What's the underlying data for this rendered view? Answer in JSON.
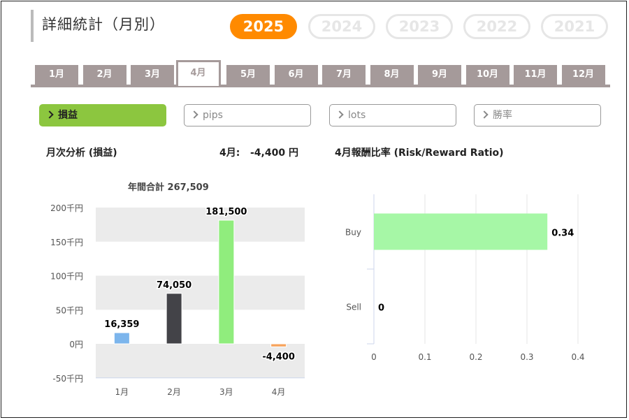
{
  "header": {
    "title": "詳細統計（月別）"
  },
  "years": [
    {
      "label": "2025",
      "active": true
    },
    {
      "label": "2024",
      "active": false
    },
    {
      "label": "2023",
      "active": false
    },
    {
      "label": "2022",
      "active": false
    },
    {
      "label": "2021",
      "active": false
    }
  ],
  "months": [
    "1月",
    "2月",
    "3月",
    "4月",
    "5月",
    "6月",
    "7月",
    "8月",
    "9月",
    "10月",
    "11月",
    "12月"
  ],
  "active_month_index": 3,
  "metrics": [
    {
      "label": "損益",
      "active": true
    },
    {
      "label": "pips",
      "active": false
    },
    {
      "label": "lots",
      "active": false
    },
    {
      "label": "勝率",
      "active": false
    }
  ],
  "left_panel": {
    "heading": "月次分析 (損益)",
    "month_label": "4月:",
    "month_value": "-4,400 円",
    "annual_total": "年間合計 267,509"
  },
  "right_panel": {
    "heading": "4月報酬比率 (Risk/Reward Ratio)"
  },
  "chart_data": [
    {
      "type": "bar",
      "categories": [
        "1月",
        "2月",
        "3月",
        "4月"
      ],
      "values": [
        16359,
        74050,
        181500,
        -4400
      ],
      "value_labels": [
        "16,359",
        "74,050",
        "181,500",
        "-4,400"
      ],
      "colors": [
        "#7cb5ec",
        "#434348",
        "#90ed7d",
        "#f7a35c"
      ],
      "yticks": [
        -50000,
        0,
        50000,
        100000,
        150000,
        200000
      ],
      "ytick_labels": [
        "-50千円",
        "0円",
        "50千円",
        "100千円",
        "150千円",
        "200千円"
      ],
      "ylim": [
        -50000,
        200000
      ],
      "grid": "banded"
    },
    {
      "type": "bar",
      "orientation": "horizontal",
      "categories": [
        "Buy",
        "Sell"
      ],
      "values": [
        0.34,
        0
      ],
      "value_labels": [
        "0.34",
        "0"
      ],
      "colors": [
        "#a6f7a6",
        "#a6f7a6"
      ],
      "xticks": [
        0,
        0.1,
        0.2,
        0.3,
        0.4
      ],
      "xtick_labels": [
        "0",
        "0.1",
        "0.2",
        "0.3",
        "0.4"
      ],
      "xlim": [
        0,
        0.4
      ],
      "grid": "vertical"
    }
  ]
}
